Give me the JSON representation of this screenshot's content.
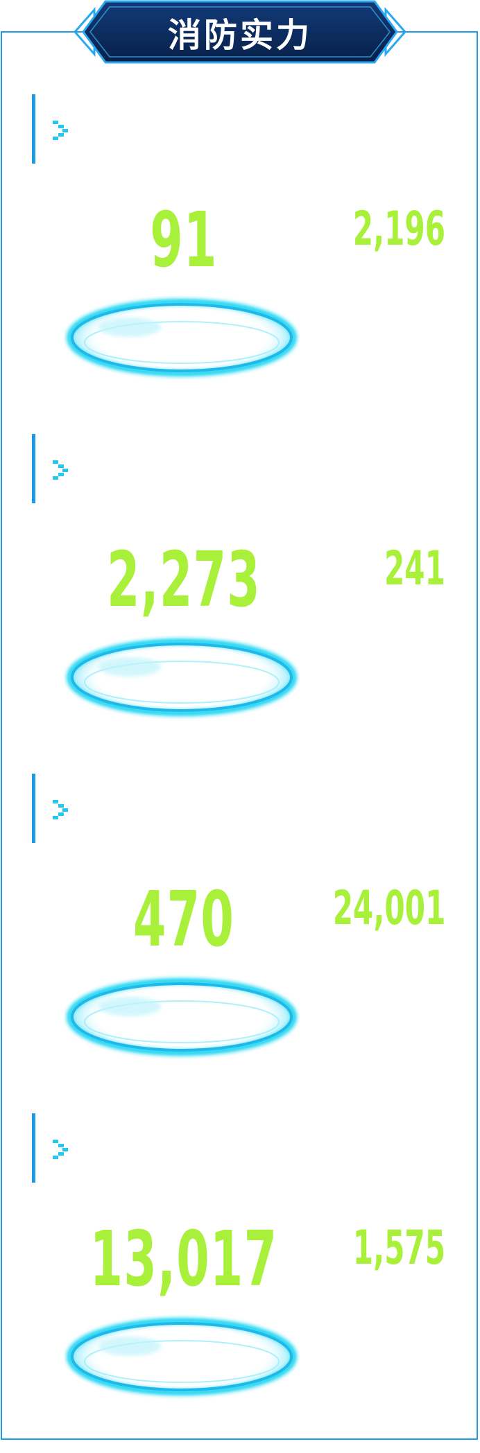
{
  "header": {
    "title": "消防实力"
  },
  "colors": {
    "accent": "#1e9be6",
    "value": "#a9f03a",
    "title_bg": "#0c2a5a",
    "ring": "#22d6f2"
  },
  "sections": [
    {
      "icon": "chevron-steps-icon",
      "label": "",
      "value": "91",
      "side_value": "2,196"
    },
    {
      "icon": "chevron-steps-icon",
      "label": "",
      "value": "2,273",
      "side_value": "241"
    },
    {
      "icon": "chevron-steps-icon",
      "label": "",
      "value": "470",
      "side_value": "24,001"
    },
    {
      "icon": "chevron-steps-icon",
      "label": "",
      "value": "13,017",
      "side_value": "1,575"
    }
  ]
}
